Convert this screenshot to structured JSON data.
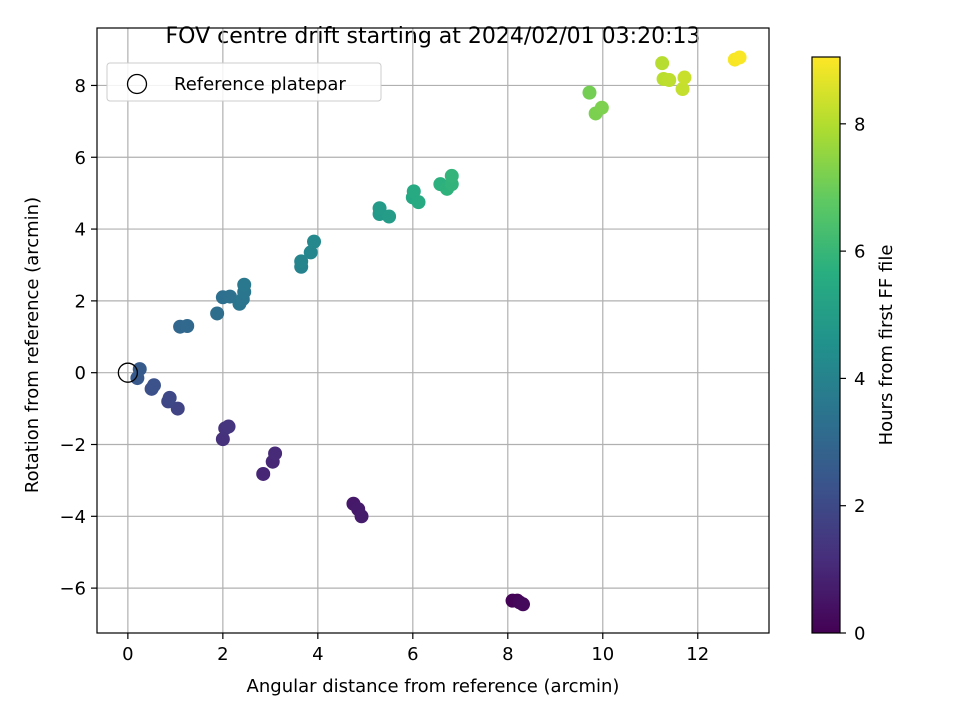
{
  "chart_data": {
    "type": "scatter",
    "title": "FOV centre drift starting at 2024/02/01 03:20:13",
    "xlabel": "Angular distance from reference (arcmin)",
    "ylabel": "Rotation from reference (arcmin)",
    "xlim": [
      -0.65,
      13.5
    ],
    "ylim": [
      -7.25,
      9.6
    ],
    "xticks": [
      0,
      2,
      4,
      6,
      8,
      10,
      12
    ],
    "yticks": [
      -6,
      -4,
      -2,
      0,
      2,
      4,
      6,
      8
    ],
    "grid": true,
    "legend": {
      "position": "top-left",
      "entries": [
        "Reference platepar"
      ]
    },
    "reference_point": {
      "x": 0,
      "y": 0,
      "label": "Reference platepar"
    },
    "colorbar": {
      "label": "Hours from first FF file",
      "colormap": "viridis",
      "range": [
        0,
        9.05
      ],
      "ticks": [
        0,
        2,
        4,
        6,
        8
      ]
    },
    "points": [
      {
        "x": 8.1,
        "y": -6.35,
        "c": 0.05
      },
      {
        "x": 8.2,
        "y": -6.35,
        "c": 0.1
      },
      {
        "x": 8.25,
        "y": -6.4,
        "c": 0.15
      },
      {
        "x": 8.32,
        "y": -6.45,
        "c": 0.2
      },
      {
        "x": 4.75,
        "y": -3.65,
        "c": 0.6
      },
      {
        "x": 4.85,
        "y": -3.8,
        "c": 0.65
      },
      {
        "x": 4.92,
        "y": -4.0,
        "c": 0.7
      },
      {
        "x": 2.85,
        "y": -2.82,
        "c": 0.95
      },
      {
        "x": 3.05,
        "y": -2.48,
        "c": 1.0
      },
      {
        "x": 3.1,
        "y": -2.25,
        "c": 1.05
      },
      {
        "x": 2.0,
        "y": -1.85,
        "c": 1.25
      },
      {
        "x": 2.05,
        "y": -1.55,
        "c": 1.3
      },
      {
        "x": 2.12,
        "y": -1.5,
        "c": 1.35
      },
      {
        "x": 1.05,
        "y": -1.0,
        "c": 1.8
      },
      {
        "x": 0.85,
        "y": -0.8,
        "c": 1.9
      },
      {
        "x": 0.88,
        "y": -0.7,
        "c": 1.95
      },
      {
        "x": 0.5,
        "y": -0.45,
        "c": 2.2
      },
      {
        "x": 0.55,
        "y": -0.35,
        "c": 2.25
      },
      {
        "x": 0.2,
        "y": -0.15,
        "c": 2.5
      },
      {
        "x": 0.25,
        "y": 0.1,
        "c": 2.6
      },
      {
        "x": 1.1,
        "y": 1.28,
        "c": 3.0
      },
      {
        "x": 1.25,
        "y": 1.3,
        "c": 3.05
      },
      {
        "x": 1.88,
        "y": 1.65,
        "c": 3.2
      },
      {
        "x": 2.0,
        "y": 2.1,
        "c": 3.3
      },
      {
        "x": 2.15,
        "y": 2.12,
        "c": 3.35
      },
      {
        "x": 2.35,
        "y": 1.92,
        "c": 3.45
      },
      {
        "x": 2.42,
        "y": 2.05,
        "c": 3.5
      },
      {
        "x": 2.45,
        "y": 2.25,
        "c": 3.55
      },
      {
        "x": 2.45,
        "y": 2.45,
        "c": 3.6
      },
      {
        "x": 3.65,
        "y": 2.95,
        "c": 4.0
      },
      {
        "x": 3.65,
        "y": 3.1,
        "c": 4.05
      },
      {
        "x": 3.85,
        "y": 3.35,
        "c": 4.15
      },
      {
        "x": 3.92,
        "y": 3.65,
        "c": 4.2
      },
      {
        "x": 5.3,
        "y": 4.42,
        "c": 4.85
      },
      {
        "x": 5.3,
        "y": 4.58,
        "c": 4.9
      },
      {
        "x": 5.5,
        "y": 4.35,
        "c": 4.95
      },
      {
        "x": 6.0,
        "y": 4.88,
        "c": 5.4
      },
      {
        "x": 6.02,
        "y": 5.05,
        "c": 5.45
      },
      {
        "x": 6.12,
        "y": 4.75,
        "c": 5.5
      },
      {
        "x": 6.58,
        "y": 5.25,
        "c": 5.75
      },
      {
        "x": 6.72,
        "y": 5.12,
        "c": 5.8
      },
      {
        "x": 6.82,
        "y": 5.25,
        "c": 5.85
      },
      {
        "x": 6.82,
        "y": 5.48,
        "c": 5.9
      },
      {
        "x": 9.72,
        "y": 7.8,
        "c": 7.1
      },
      {
        "x": 9.85,
        "y": 7.22,
        "c": 7.2
      },
      {
        "x": 9.98,
        "y": 7.38,
        "c": 7.25
      },
      {
        "x": 11.25,
        "y": 8.62,
        "c": 8.05
      },
      {
        "x": 11.28,
        "y": 8.18,
        "c": 8.1
      },
      {
        "x": 11.4,
        "y": 8.15,
        "c": 8.15
      },
      {
        "x": 11.68,
        "y": 7.9,
        "c": 8.25
      },
      {
        "x": 11.72,
        "y": 8.22,
        "c": 8.3
      },
      {
        "x": 12.78,
        "y": 8.72,
        "c": 8.95
      },
      {
        "x": 12.88,
        "y": 8.78,
        "c": 9.0
      }
    ]
  }
}
